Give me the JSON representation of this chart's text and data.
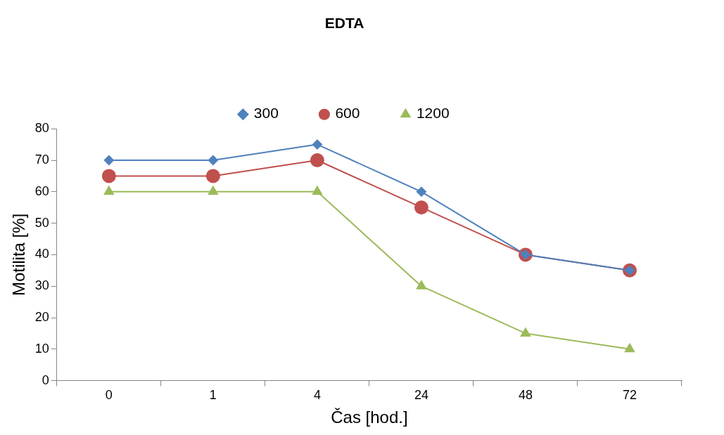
{
  "chart_data": {
    "type": "line",
    "title": "EDTA",
    "xlabel": "Čas [hod.]",
    "ylabel": "Motilita [%]",
    "categories": [
      "0",
      "1",
      "4",
      "24",
      "48",
      "72"
    ],
    "series": [
      {
        "name": "300",
        "color": "#4f81bd",
        "marker": "diamond",
        "values": [
          70,
          70,
          75,
          60,
          40,
          35
        ]
      },
      {
        "name": "600",
        "color": "#c0504d",
        "marker": "circle",
        "values": [
          65,
          65,
          70,
          55,
          40,
          35
        ]
      },
      {
        "name": "1200",
        "color": "#9bbb59",
        "marker": "triangle",
        "values": [
          60,
          60,
          60,
          30,
          15,
          10
        ]
      }
    ],
    "ylim": [
      0,
      80
    ],
    "yticks": [
      0,
      10,
      20,
      30,
      40,
      50,
      60,
      70,
      80
    ],
    "grid": false,
    "legend": "top",
    "line_style": "solid"
  }
}
